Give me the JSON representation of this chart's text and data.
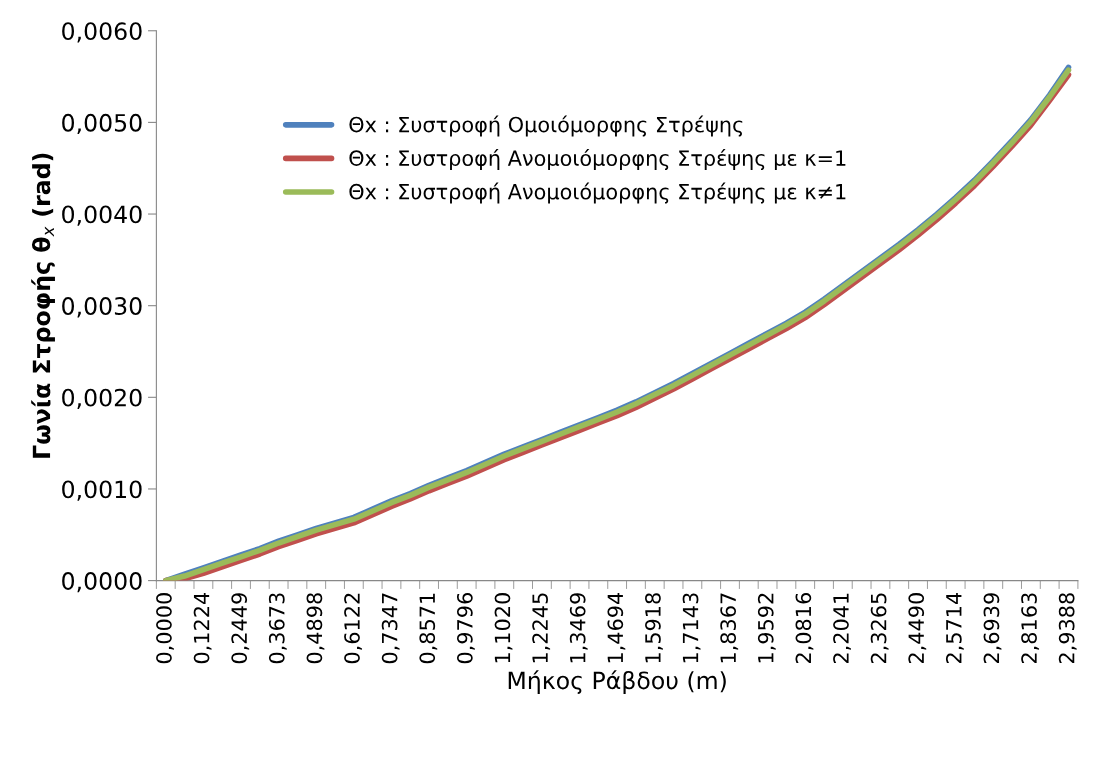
{
  "chart_data": {
    "type": "line",
    "xlabel": "Μήκος Ράβδου (m)",
    "ylabel": "Γωνία Στροφής θ$_{x}$ (rad)",
    "categories": [
      "0,0000",
      null,
      "0,1224",
      null,
      "0,2449",
      null,
      "0,3673",
      null,
      "0,4898",
      null,
      "0,6122",
      null,
      "0,7347",
      null,
      "0,8571",
      null,
      "0,9796",
      null,
      "1,1020",
      null,
      "1,2245",
      null,
      "1,3469",
      null,
      "1,4694",
      null,
      "1,5918",
      null,
      "1,7143",
      null,
      "1,8367",
      null,
      "1,9592",
      null,
      "2,0816",
      null,
      "2,2041",
      null,
      "2,3265",
      null,
      "2,4490",
      null,
      "2,5714",
      null,
      "2,6939",
      null,
      "2,8163",
      null,
      "2,9388"
    ],
    "series": [
      {
        "name": "Θx : Συστροφή Ομοιόμορφης Στρέψης",
        "color": "#4f81bd",
        "values": [
          0,
          7e-05,
          0.00014,
          0.00021,
          0.00028,
          0.00035,
          0.00043,
          0.0005,
          0.00057,
          0.00063,
          0.00069,
          0.00078,
          0.00087,
          0.00095,
          0.00104,
          0.00112,
          0.0012,
          0.00129,
          0.00138,
          0.00146,
          0.00154,
          0.00162,
          0.0017,
          0.00178,
          0.00186,
          0.00195,
          0.00205,
          0.00215,
          0.00226,
          0.00237,
          0.00248,
          0.00259,
          0.0027,
          0.00281,
          0.00293,
          0.00307,
          0.00322,
          0.00337,
          0.00352,
          0.00367,
          0.00383,
          0.004,
          0.00418,
          0.00437,
          0.00458,
          0.0048,
          0.00503,
          0.0053,
          0.0056
        ]
      },
      {
        "name": "Θx : Συστροφή Ανομοιόμορφης Στρέψης με κ=1",
        "color": "#c0504d",
        "values": [
          0,
          2e-05,
          8e-05,
          0.00015,
          0.00022,
          0.00029,
          0.00037,
          0.00044,
          0.00051,
          0.00057,
          0.00063,
          0.00072,
          0.00081,
          0.00089,
          0.00098,
          0.00106,
          0.00114,
          0.00123,
          0.00132,
          0.0014,
          0.00148,
          0.00156,
          0.00164,
          0.00172,
          0.0018,
          0.00189,
          0.00199,
          0.00209,
          0.0022,
          0.00231,
          0.00242,
          0.00253,
          0.00264,
          0.00275,
          0.00287,
          0.00301,
          0.00316,
          0.00331,
          0.00346,
          0.00361,
          0.00377,
          0.00394,
          0.00412,
          0.00431,
          0.00452,
          0.00474,
          0.00497,
          0.00524,
          0.00552
        ]
      },
      {
        "name": "Θx : Συστροφή Ανομοιόμορφης Στρέψης με κ≠1",
        "color": "#9bbb59",
        "values": [
          0,
          5e-05,
          0.00012,
          0.00019,
          0.00026,
          0.00033,
          0.00041,
          0.00048,
          0.00055,
          0.00061,
          0.00067,
          0.00076,
          0.00085,
          0.00093,
          0.00102,
          0.0011,
          0.00118,
          0.00127,
          0.00136,
          0.00144,
          0.00152,
          0.0016,
          0.00168,
          0.00176,
          0.00184,
          0.00193,
          0.00203,
          0.00213,
          0.00224,
          0.00235,
          0.00246,
          0.00257,
          0.00268,
          0.00279,
          0.00291,
          0.00305,
          0.0032,
          0.00335,
          0.0035,
          0.00365,
          0.00381,
          0.00398,
          0.00416,
          0.00435,
          0.00456,
          0.00478,
          0.00501,
          0.00528,
          0.00557
        ]
      }
    ],
    "ylim": [
      0,
      0.006
    ],
    "yticks": [
      {
        "value": 0,
        "label": "0,0000"
      },
      {
        "value": 0.001,
        "label": "0,0010"
      },
      {
        "value": 0.002,
        "label": "0,0020"
      },
      {
        "value": 0.003,
        "label": "0,0030"
      },
      {
        "value": 0.004,
        "label": "0,0040"
      },
      {
        "value": 0.005,
        "label": "0,0050"
      },
      {
        "value": 0.006,
        "label": "0,0060"
      }
    ],
    "legend": "top left",
    "marker": "none",
    "line_style": "solid"
  }
}
